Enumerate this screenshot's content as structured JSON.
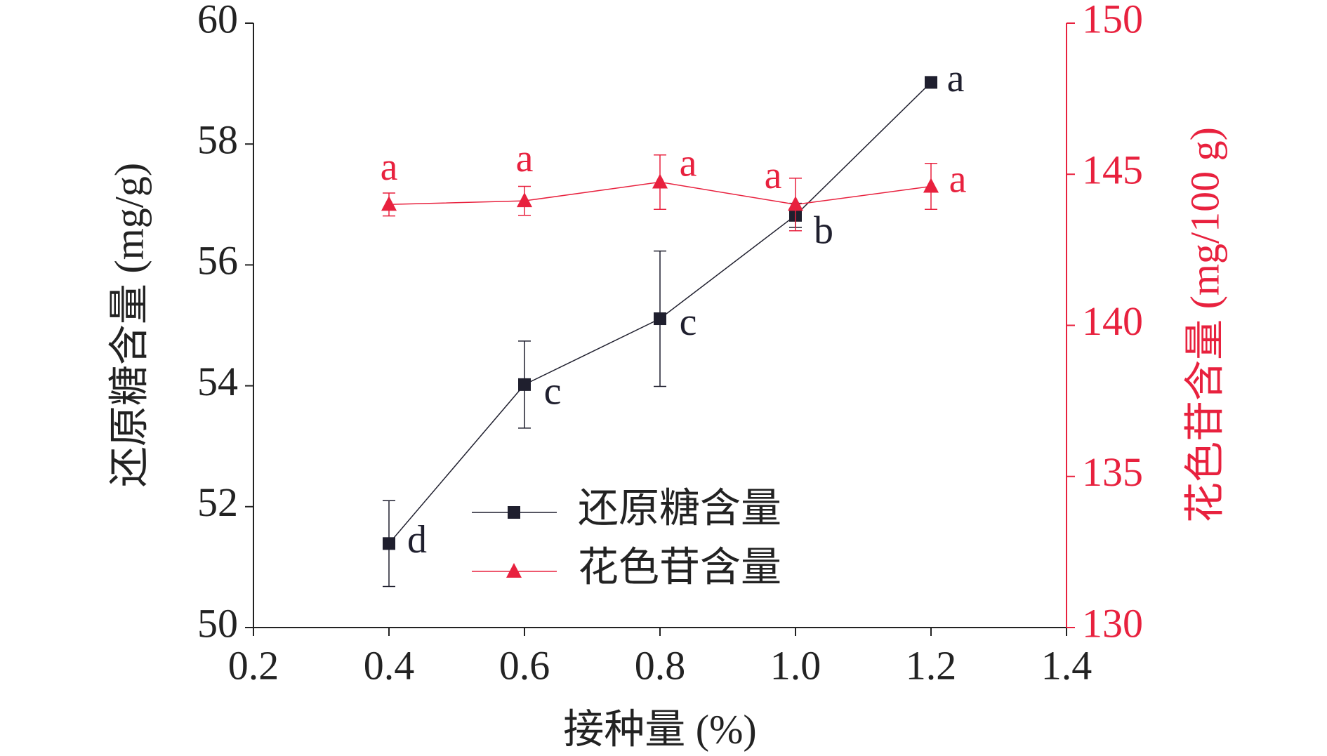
{
  "chart_data": {
    "type": "line",
    "xlabel": "接种量 (%)",
    "ylabel": "还原糖含量 (mg/g)",
    "y2label": "花色苷含量 (mg/100 g)",
    "x": [
      0.4,
      0.6,
      0.8,
      1.0,
      1.2
    ],
    "xlim": [
      0.2,
      1.4
    ],
    "xticks": [
      0.2,
      0.4,
      0.6,
      0.8,
      {
        "value": 1.0,
        "label": "1.0"
      },
      1.2,
      1.4
    ],
    "ylim": [
      50,
      60
    ],
    "yticks": [
      50,
      52,
      54,
      56,
      58,
      60
    ],
    "y2lim": [
      130,
      150
    ],
    "y2ticks": [
      130,
      135,
      140,
      145,
      150
    ],
    "y2color": "#e8213e",
    "legend": "lower center",
    "series": [
      {
        "name": "还原糖含量",
        "color": "#1f1f2e",
        "marker": "square",
        "values": [
          51.39,
          54.02,
          55.11,
          56.82,
          59.02
        ],
        "errors": [
          0.71,
          0.72,
          1.12,
          0.2,
          0.07
        ],
        "labels": [
          "d",
          "c",
          "c",
          "b",
          "a"
        ]
      },
      {
        "name": "花色苷含量",
        "color": "#e8213e",
        "marker": "triangle",
        "axis": "y2",
        "values": [
          144.0,
          144.12,
          144.74,
          144.0,
          144.6
        ],
        "errors": [
          0.38,
          0.48,
          0.9,
          0.87,
          0.76
        ],
        "labels": [
          "a",
          "a",
          "a",
          "a",
          "a"
        ]
      }
    ]
  }
}
